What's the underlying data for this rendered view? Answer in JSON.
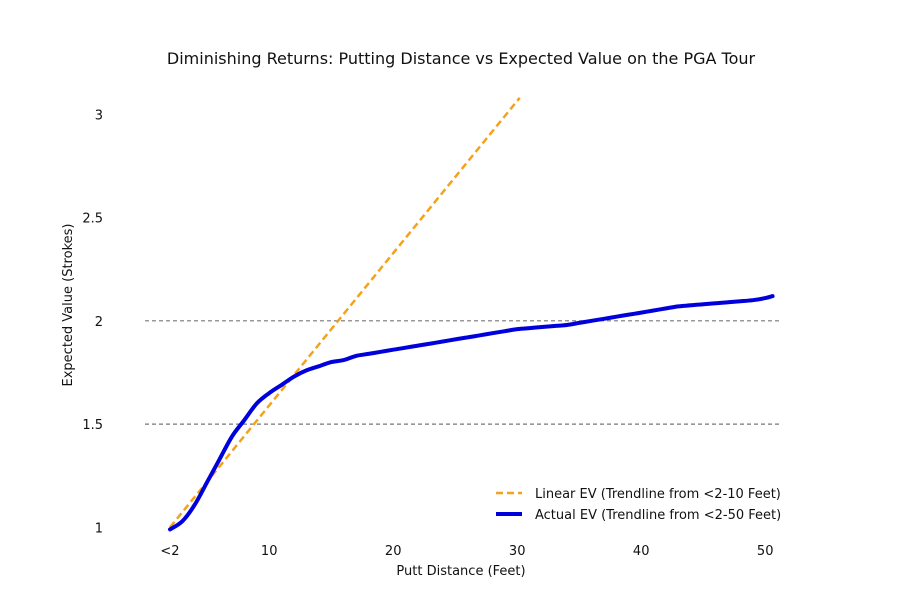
{
  "chart_data": {
    "type": "line",
    "title": "Diminishing Returns: Putting Distance vs Expected Value on the PGA Tour",
    "xlabel": "Putt Distance (Feet)",
    "ylabel": "Expected Value (Strokes)",
    "xlim": [
      0,
      50
    ],
    "ylim": [
      0.9,
      3.05
    ],
    "x_ticks": [
      {
        "value": 0,
        "label": "<2"
      },
      {
        "value": 8,
        "label": "10"
      },
      {
        "value": 18,
        "label": "20"
      },
      {
        "value": 28,
        "label": "30"
      },
      {
        "value": 38,
        "label": "40"
      },
      {
        "value": 48,
        "label": "50"
      }
    ],
    "y_ticks": [
      {
        "value": 1,
        "label": "1"
      },
      {
        "value": 1.5,
        "label": "1.5"
      },
      {
        "value": 2,
        "label": "2"
      },
      {
        "value": 2.5,
        "label": "2.5"
      },
      {
        "value": 3,
        "label": "3"
      }
    ],
    "reference_lines": [
      1.5,
      2.0
    ],
    "grid": false,
    "legend_position": "bottom-right",
    "series": [
      {
        "name": "Linear EV (Trendline from <2-10 Feet)",
        "style": "dashed",
        "color": "#f5a21b",
        "x": [
          0,
          28.2
        ],
        "y": [
          1.0,
          3.08
        ]
      },
      {
        "name": "Actual EV (Trendline from <2-50 Feet)",
        "style": "solid",
        "color": "#0000dd",
        "x": [
          0,
          1,
          2,
          3,
          4,
          5,
          6,
          7,
          8,
          9,
          10,
          11,
          12,
          13,
          14,
          15,
          16,
          17,
          18,
          19,
          20,
          21,
          22,
          23,
          24,
          25,
          26,
          27,
          28,
          29,
          30,
          31,
          32,
          33,
          34,
          35,
          36,
          37,
          38,
          39,
          40,
          41,
          42,
          43,
          44,
          45,
          46,
          47,
          48,
          48.6
        ],
        "y": [
          0.99,
          1.03,
          1.11,
          1.22,
          1.33,
          1.44,
          1.52,
          1.6,
          1.65,
          1.69,
          1.73,
          1.76,
          1.78,
          1.8,
          1.81,
          1.83,
          1.84,
          1.85,
          1.86,
          1.87,
          1.88,
          1.89,
          1.9,
          1.91,
          1.92,
          1.93,
          1.94,
          1.95,
          1.96,
          1.965,
          1.97,
          1.975,
          1.98,
          1.99,
          2.0,
          2.01,
          2.02,
          2.03,
          2.04,
          2.05,
          2.06,
          2.07,
          2.075,
          2.08,
          2.085,
          2.09,
          2.095,
          2.1,
          2.11,
          2.12
        ]
      }
    ]
  }
}
